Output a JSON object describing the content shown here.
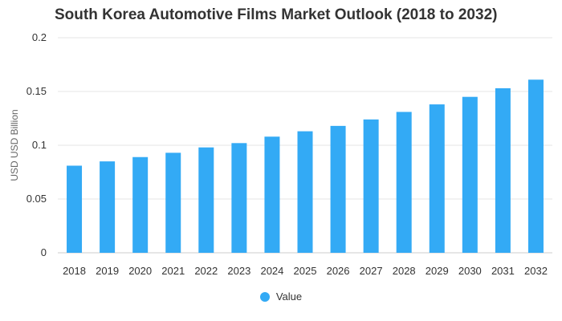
{
  "chart_data": {
    "type": "bar",
    "title": "South Korea Automotive Films Market Outlook (2018 to 2032)",
    "xlabel": "",
    "ylabel": "USD USD Billion",
    "categories": [
      "2018",
      "2019",
      "2020",
      "2021",
      "2022",
      "2023",
      "2024",
      "2025",
      "2026",
      "2027",
      "2028",
      "2029",
      "2030",
      "2031",
      "2032"
    ],
    "series": [
      {
        "name": "Value",
        "color": "#33aaf5",
        "values": [
          0.081,
          0.085,
          0.089,
          0.093,
          0.098,
          0.102,
          0.108,
          0.113,
          0.118,
          0.124,
          0.131,
          0.138,
          0.145,
          0.153,
          0.161
        ]
      }
    ],
    "ylim": [
      0,
      0.2
    ],
    "yticks": [
      "0",
      "0.05",
      "0.1",
      "0.15",
      "0.2"
    ],
    "ytick_values": [
      0,
      0.05,
      0.1,
      0.15,
      0.2
    ],
    "grid": true,
    "legend_position": "bottom"
  }
}
